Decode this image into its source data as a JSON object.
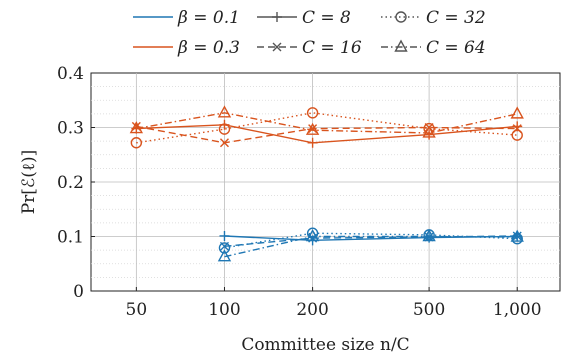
{
  "chart_data": {
    "type": "line",
    "xlabel": "Committee size n/C",
    "ylabel": "Pr[ℰ(ℓ)]",
    "x_scale": "log",
    "xlim": [
      35,
      1400
    ],
    "ylim": [
      0,
      0.4
    ],
    "x_ticks": [
      50,
      100,
      200,
      500,
      1000
    ],
    "x_tick_labels": [
      "50",
      "100",
      "200",
      "500",
      "1,000"
    ],
    "y_ticks": [
      0,
      0.1,
      0.2,
      0.3,
      0.4
    ],
    "y_tick_labels": [
      "0",
      "0.1",
      "0.2",
      "0.3",
      "0.4"
    ],
    "grid": true,
    "legend_position": "top",
    "colors": {
      "beta_0.1": "#1f77b4",
      "beta_0.3": "#d9541e",
      "neutral": "#555555"
    },
    "legend": [
      {
        "label": "β = 0.1",
        "kind": "color",
        "color": "#1f77b4"
      },
      {
        "label": "C = 8",
        "kind": "style",
        "dash": "solid",
        "marker": "plus"
      },
      {
        "label": "C = 32",
        "kind": "style",
        "dash": "dotted",
        "marker": "circle"
      },
      {
        "label": "β = 0.3",
        "kind": "color",
        "color": "#d9541e"
      },
      {
        "label": "C = 16",
        "kind": "style",
        "dash": "dashed",
        "marker": "x"
      },
      {
        "label": "C = 64",
        "kind": "style",
        "dash": "dashdot",
        "marker": "triangle"
      }
    ],
    "series": [
      {
        "beta": 0.3,
        "C": 8,
        "color": "#d9541e",
        "dash": "solid",
        "marker": "plus",
        "x": [
          50,
          100,
          200,
          500,
          1000
        ],
        "y": [
          0.298,
          0.305,
          0.272,
          0.287,
          0.302
        ]
      },
      {
        "beta": 0.3,
        "C": 16,
        "color": "#d9541e",
        "dash": "dashed",
        "marker": "x",
        "x": [
          50,
          100,
          200,
          500,
          1000
        ],
        "y": [
          0.302,
          0.272,
          0.298,
          0.3,
          0.298
        ]
      },
      {
        "beta": 0.3,
        "C": 32,
        "color": "#d9541e",
        "dash": "dotted",
        "marker": "circle",
        "x": [
          50,
          100,
          200,
          500,
          1000
        ],
        "y": [
          0.272,
          0.297,
          0.327,
          0.298,
          0.286
        ]
      },
      {
        "beta": 0.3,
        "C": 64,
        "color": "#d9541e",
        "dash": "dashdot",
        "marker": "triangle",
        "x": [
          50,
          100,
          200,
          500,
          1000
        ],
        "y": [
          0.298,
          0.327,
          0.295,
          0.29,
          0.325
        ]
      },
      {
        "beta": 0.1,
        "C": 8,
        "color": "#1f77b4",
        "dash": "solid",
        "marker": "plus",
        "x": [
          100,
          200,
          500,
          1000
        ],
        "y": [
          0.101,
          0.093,
          0.098,
          0.1
        ]
      },
      {
        "beta": 0.1,
        "C": 16,
        "color": "#1f77b4",
        "dash": "dashed",
        "marker": "x",
        "x": [
          100,
          200,
          500,
          1000
        ],
        "y": [
          0.082,
          0.097,
          0.099,
          0.101
        ]
      },
      {
        "beta": 0.1,
        "C": 32,
        "color": "#1f77b4",
        "dash": "dotted",
        "marker": "circle",
        "x": [
          100,
          200,
          500,
          1000
        ],
        "y": [
          0.079,
          0.106,
          0.103,
          0.096
        ]
      },
      {
        "beta": 0.1,
        "C": 64,
        "color": "#1f77b4",
        "dash": "dashdot",
        "marker": "triangle",
        "x": [
          100,
          200,
          500,
          1000
        ],
        "y": [
          0.063,
          0.1,
          0.1,
          0.099
        ]
      }
    ]
  }
}
